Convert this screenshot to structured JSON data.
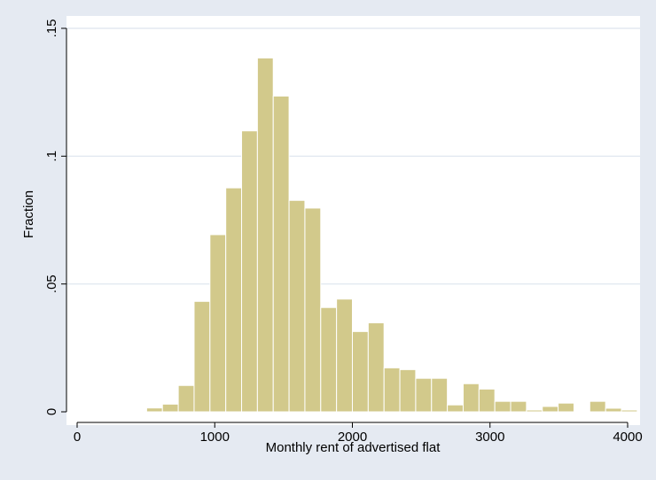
{
  "chart_data": {
    "type": "bar",
    "subtype": "histogram",
    "xlabel": "Monthly rent of advertised flat",
    "ylabel": "Fraction",
    "xlim": [
      -20,
      4020
    ],
    "ylim": [
      0,
      0.15
    ],
    "x_ticks": [
      0,
      1000,
      2000,
      3000,
      4000
    ],
    "x_tick_labels": [
      "0",
      "1000",
      "2000",
      "3000",
      "4000"
    ],
    "y_ticks": [
      0,
      0.05,
      0.1,
      0.15
    ],
    "y_tick_labels": [
      "0",
      ".05",
      ".1",
      ".15"
    ],
    "grid": "horizontal",
    "legend": "none",
    "bin_width": 115,
    "bins": [
      {
        "start": 505,
        "value": 0.0015
      },
      {
        "start": 620,
        "value": 0.003
      },
      {
        "start": 735,
        "value": 0.0103
      },
      {
        "start": 850,
        "value": 0.0432
      },
      {
        "start": 965,
        "value": 0.0693
      },
      {
        "start": 1080,
        "value": 0.0876
      },
      {
        "start": 1195,
        "value": 0.1099
      },
      {
        "start": 1310,
        "value": 0.1384
      },
      {
        "start": 1425,
        "value": 0.1235
      },
      {
        "start": 1540,
        "value": 0.0827
      },
      {
        "start": 1655,
        "value": 0.0797
      },
      {
        "start": 1770,
        "value": 0.0408
      },
      {
        "start": 1885,
        "value": 0.0441
      },
      {
        "start": 2000,
        "value": 0.0314
      },
      {
        "start": 2115,
        "value": 0.0348
      },
      {
        "start": 2230,
        "value": 0.0172
      },
      {
        "start": 2345,
        "value": 0.0165
      },
      {
        "start": 2460,
        "value": 0.0131
      },
      {
        "start": 2575,
        "value": 0.0131
      },
      {
        "start": 2690,
        "value": 0.0027
      },
      {
        "start": 2805,
        "value": 0.011
      },
      {
        "start": 2920,
        "value": 0.0089
      },
      {
        "start": 3035,
        "value": 0.0041
      },
      {
        "start": 3150,
        "value": 0.0041
      },
      {
        "start": 3265,
        "value": 0.0007
      },
      {
        "start": 3380,
        "value": 0.0021
      },
      {
        "start": 3495,
        "value": 0.0034
      },
      {
        "start": 3610,
        "value": 0.0
      },
      {
        "start": 3725,
        "value": 0.0041
      },
      {
        "start": 3840,
        "value": 0.0014
      },
      {
        "start": 3955,
        "value": 0.0007
      }
    ],
    "colors": {
      "background": "#e5eaf2",
      "plot": "#ffffff",
      "bar_fill": "#d2c98b",
      "bar_stroke": "#ffffff",
      "grid": "#dde4ee"
    }
  }
}
